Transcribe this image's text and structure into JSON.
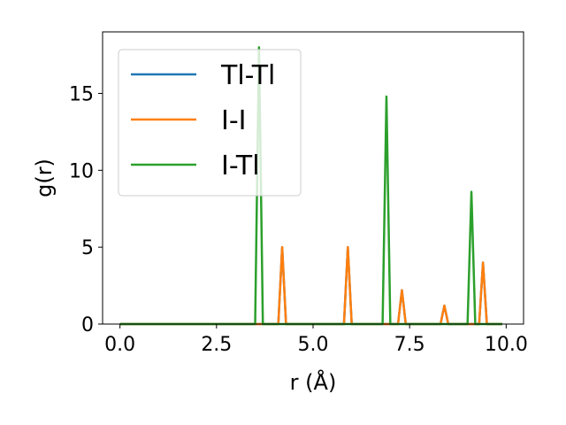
{
  "chart_data": {
    "type": "line",
    "title": "",
    "xlabel": "r (Å)",
    "ylabel": "g(r)",
    "xlim": [
      -0.45,
      10.45
    ],
    "ylim": [
      0,
      19
    ],
    "xticks": [
      0.0,
      2.5,
      5.0,
      7.5,
      10.0
    ],
    "xtick_labels": [
      "0.0",
      "2.5",
      "5.0",
      "7.5",
      "10.0"
    ],
    "yticks": [
      0,
      5,
      10,
      15
    ],
    "ytick_labels": [
      "0",
      "5",
      "10",
      "15"
    ],
    "grid": false,
    "legend_position": "top-left",
    "series": [
      {
        "name": "Tl-Tl",
        "color": "#1f77b4",
        "x": [
          0.0,
          4.1,
          4.2,
          4.3,
          5.8,
          5.9,
          6.0,
          7.2,
          7.3,
          7.4,
          8.3,
          8.4,
          8.5,
          9.3,
          9.4,
          9.5,
          9.9
        ],
        "y": [
          0,
          0,
          5.0,
          0,
          0,
          5.0,
          0,
          0,
          2.2,
          0,
          0,
          1.2,
          0,
          0,
          4.0,
          0,
          0
        ]
      },
      {
        "name": "I-I",
        "color": "#ff7f0e",
        "x": [
          0.0,
          4.1,
          4.2,
          4.3,
          5.8,
          5.9,
          6.0,
          7.2,
          7.3,
          7.4,
          8.3,
          8.4,
          8.5,
          9.3,
          9.4,
          9.5,
          9.9
        ],
        "y": [
          0,
          0,
          5.0,
          0,
          0,
          5.0,
          0,
          0,
          2.2,
          0,
          0,
          1.2,
          0,
          0,
          4.0,
          0,
          0
        ]
      },
      {
        "name": "I-Tl",
        "color": "#2ca02c",
        "x": [
          0.0,
          3.5,
          3.6,
          3.7,
          6.8,
          6.9,
          7.0,
          9.0,
          9.1,
          9.2,
          9.9
        ],
        "y": [
          0,
          0,
          18.0,
          0,
          0,
          14.8,
          0,
          0,
          8.6,
          0,
          0
        ]
      }
    ]
  }
}
